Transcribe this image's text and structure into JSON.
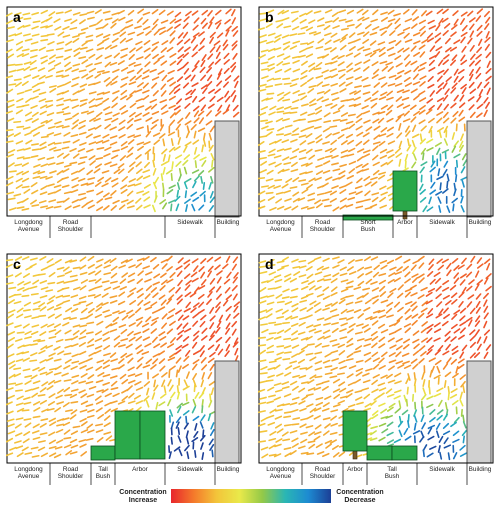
{
  "panels": [
    {
      "id": "a",
      "label": "a",
      "segments": [
        {
          "lines": [
            "Longdong",
            "Avenue"
          ]
        },
        {
          "lines": [
            "Road",
            "Shoulder"
          ]
        },
        {
          "lines": [
            ""
          ]
        },
        {
          "lines": [
            "Sidewalk"
          ]
        },
        {
          "lines": [
            "Building"
          ]
        }
      ],
      "vegetation": []
    },
    {
      "id": "b",
      "label": "b",
      "segments": [
        {
          "lines": [
            "Longdong",
            "Avenue"
          ]
        },
        {
          "lines": [
            "Road",
            "Shoulder"
          ]
        },
        {
          "lines": [
            "Short",
            "Bush"
          ]
        },
        {
          "lines": [
            "Arbor"
          ]
        },
        {
          "lines": [
            "Sidewalk"
          ]
        },
        {
          "lines": [
            "Building"
          ]
        }
      ],
      "vegetation": [
        "short-bush",
        "arbor"
      ]
    },
    {
      "id": "c",
      "label": "c",
      "segments": [
        {
          "lines": [
            "Longdong",
            "Avenue"
          ]
        },
        {
          "lines": [
            "Road",
            "Shoulder"
          ]
        },
        {
          "lines": [
            "Tall",
            "Bush"
          ]
        },
        {
          "lines": [
            "Arbor"
          ]
        },
        {
          "lines": [
            "Sidewalk"
          ]
        },
        {
          "lines": [
            "Building"
          ]
        }
      ],
      "vegetation": [
        "tall-bush",
        "arbor",
        "arbor"
      ]
    },
    {
      "id": "d",
      "label": "d",
      "segments": [
        {
          "lines": [
            "Longdong",
            "Avenue"
          ]
        },
        {
          "lines": [
            "Road",
            "Shoulder"
          ]
        },
        {
          "lines": [
            "Arbor"
          ]
        },
        {
          "lines": [
            "Tall",
            "Bush"
          ]
        },
        {
          "lines": [
            "Sidewalk"
          ]
        },
        {
          "lines": [
            "Building"
          ]
        }
      ],
      "vegetation": [
        "arbor",
        "tall-bush"
      ]
    }
  ],
  "legend": {
    "left_label": [
      "Concentration",
      "Increase"
    ],
    "right_label": [
      "Concentration",
      "Decrease"
    ],
    "gradient_colors": [
      "#e8262d",
      "#f47a2b",
      "#f3c53a",
      "#e9e94a",
      "#93c948",
      "#2ab6b4",
      "#1d8bd2",
      "#1c3f96"
    ]
  },
  "colors": {
    "vegetation": "#2aa84a",
    "vegetation_outline": "#0b4a1c",
    "trunk": "#7a5a2a",
    "building": "#d0d0d0",
    "building_outline": "#555555"
  }
}
